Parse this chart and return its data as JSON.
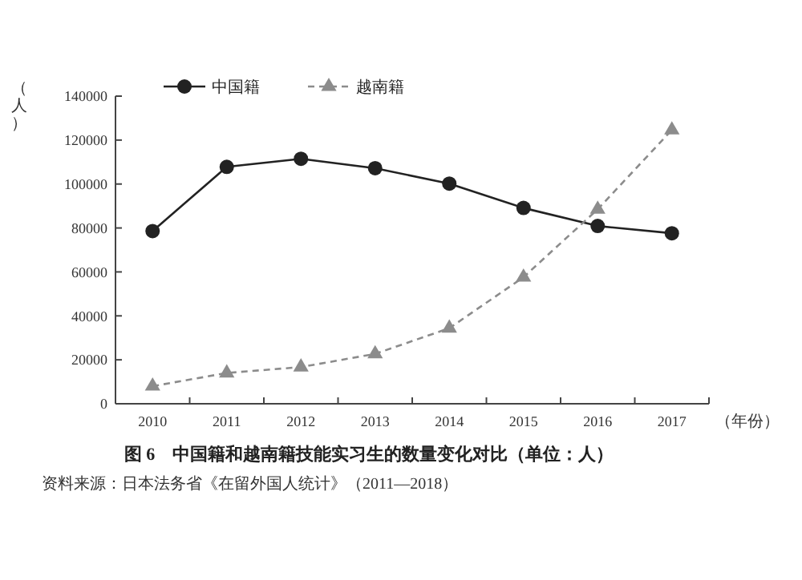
{
  "chart_data": {
    "type": "line",
    "title": "图 6　中国籍和越南籍技能实习生的数量变化对比（单位：人）",
    "xlabel": "（年份）",
    "ylabel": "（人）",
    "annotations": [
      "资料来源：日本法务省《在留外国人统计》（2011—2018）"
    ],
    "categories": [
      "2010",
      "2011",
      "2012",
      "2013",
      "2014",
      "2015",
      "2016",
      "2017"
    ],
    "series": [
      {
        "name": "中国籍",
        "color": "#222222",
        "marker": "circle",
        "line_style": "solid",
        "values": [
          78600,
          107800,
          111500,
          107200,
          100200,
          89100,
          80900,
          77600
        ]
      },
      {
        "name": "越南籍",
        "color": "#8c8c8c",
        "marker": "triangle",
        "line_style": "dashed",
        "values": [
          8000,
          14000,
          16700,
          22700,
          34400,
          57600,
          88500,
          124600
        ]
      }
    ],
    "ylim": [
      0,
      140000
    ],
    "yticks": [
      0,
      20000,
      40000,
      60000,
      80000,
      100000,
      120000,
      140000
    ],
    "grid": false,
    "legend": "top left"
  }
}
